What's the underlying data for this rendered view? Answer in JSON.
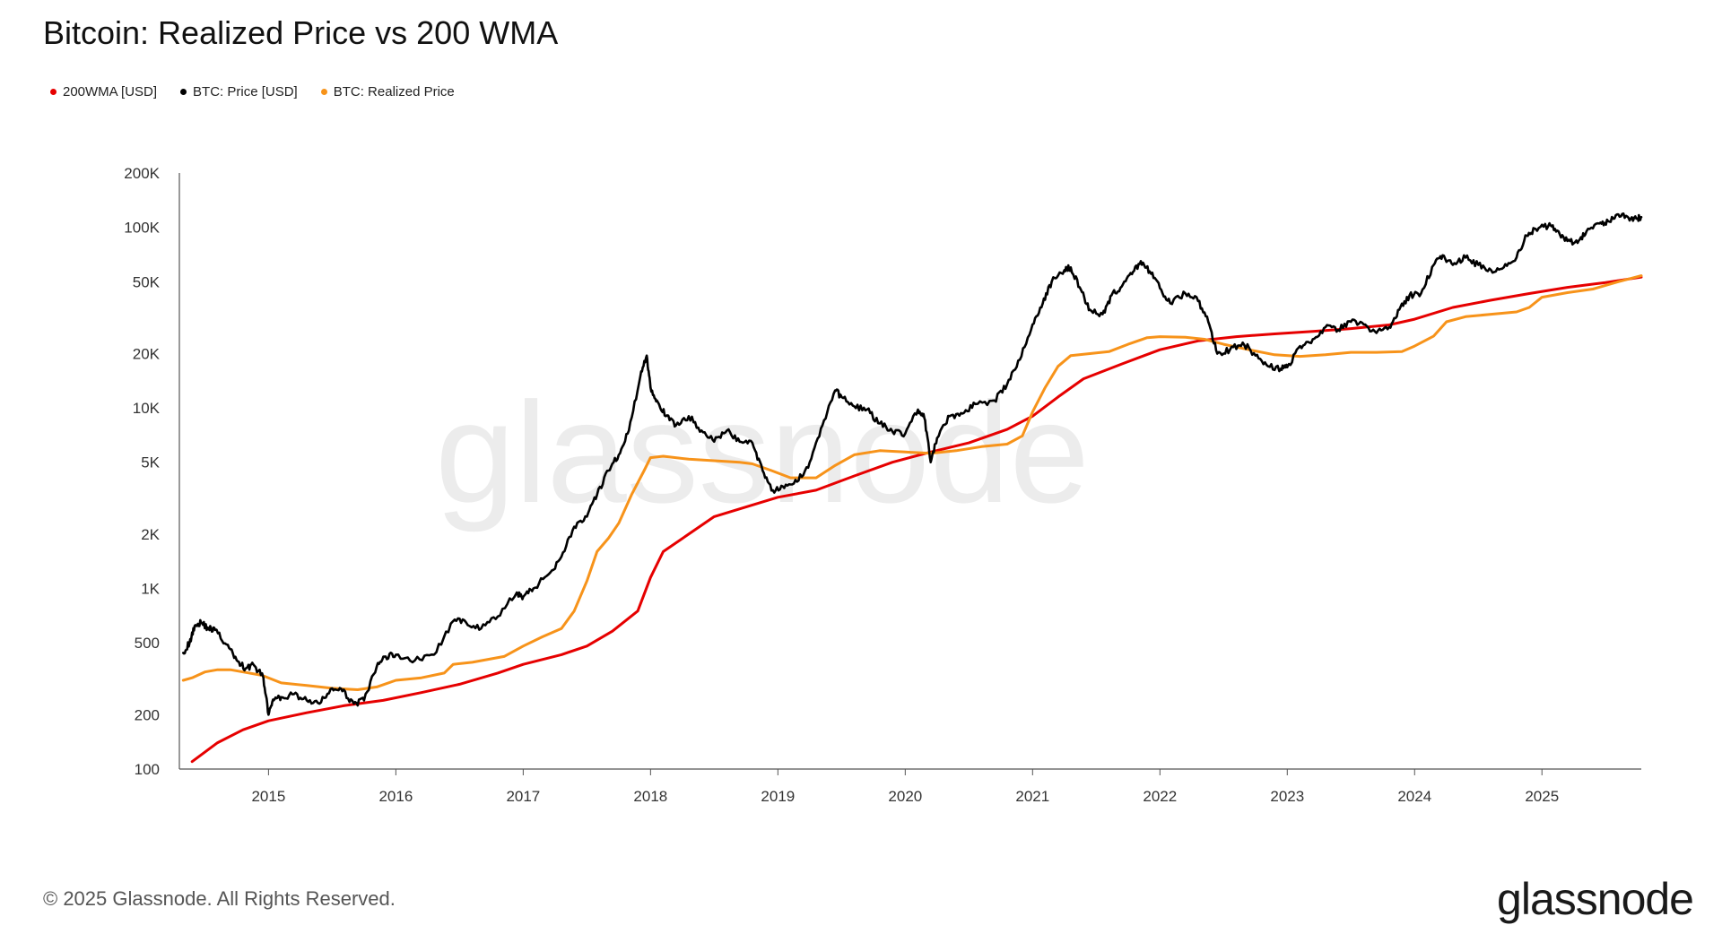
{
  "title": "Bitcoin: Realized Price vs 200 WMA",
  "legend": [
    {
      "label": "200WMA [USD]",
      "color": "#e60000"
    },
    {
      "label": "BTC: Price [USD]",
      "color": "#000000"
    },
    {
      "label": "BTC: Realized Price",
      "color": "#f7931a"
    }
  ],
  "watermark": "glassnode",
  "footer": "© 2025 Glassnode. All Rights Reserved.",
  "logo": "glassnode",
  "chart_data": {
    "type": "line",
    "scale_y": "log",
    "ylim": [
      100,
      200000
    ],
    "xlim": [
      2014.3,
      2025.78
    ],
    "y_ticks": [
      {
        "value": 100,
        "label": "100"
      },
      {
        "value": 200,
        "label": "200"
      },
      {
        "value": 500,
        "label": "500"
      },
      {
        "value": 1000,
        "label": "1K"
      },
      {
        "value": 2000,
        "label": "2K"
      },
      {
        "value": 5000,
        "label": "5K"
      },
      {
        "value": 10000,
        "label": "10K"
      },
      {
        "value": 20000,
        "label": "20K"
      },
      {
        "value": 50000,
        "label": "50K"
      },
      {
        "value": 100000,
        "label": "100K"
      },
      {
        "value": 200000,
        "label": "200K"
      }
    ],
    "x_ticks": [
      "2015",
      "2016",
      "2017",
      "2018",
      "2019",
      "2020",
      "2021",
      "2022",
      "2023",
      "2024",
      "2025"
    ],
    "grid": false,
    "legend_position": "top-left",
    "series": [
      {
        "name": "200WMA [USD]",
        "color": "#e60000",
        "points": [
          [
            2014.4,
            110
          ],
          [
            2014.6,
            140
          ],
          [
            2014.8,
            165
          ],
          [
            2015.0,
            185
          ],
          [
            2015.3,
            205
          ],
          [
            2015.6,
            225
          ],
          [
            2015.9,
            240
          ],
          [
            2016.2,
            265
          ],
          [
            2016.5,
            295
          ],
          [
            2016.8,
            340
          ],
          [
            2017.0,
            380
          ],
          [
            2017.3,
            430
          ],
          [
            2017.5,
            480
          ],
          [
            2017.7,
            580
          ],
          [
            2017.9,
            750
          ],
          [
            2018.0,
            1150
          ],
          [
            2018.1,
            1600
          ],
          [
            2018.3,
            2000
          ],
          [
            2018.5,
            2500
          ],
          [
            2018.8,
            2900
          ],
          [
            2019.0,
            3200
          ],
          [
            2019.3,
            3500
          ],
          [
            2019.6,
            4200
          ],
          [
            2019.9,
            5000
          ],
          [
            2020.2,
            5700
          ],
          [
            2020.5,
            6400
          ],
          [
            2020.8,
            7600
          ],
          [
            2021.0,
            9000
          ],
          [
            2021.2,
            11500
          ],
          [
            2021.4,
            14500
          ],
          [
            2021.7,
            17500
          ],
          [
            2022.0,
            21000
          ],
          [
            2022.3,
            23500
          ],
          [
            2022.6,
            24800
          ],
          [
            2022.9,
            25700
          ],
          [
            2023.2,
            26500
          ],
          [
            2023.5,
            27500
          ],
          [
            2023.8,
            28800
          ],
          [
            2024.0,
            31000
          ],
          [
            2024.3,
            36000
          ],
          [
            2024.6,
            39500
          ],
          [
            2024.9,
            43000
          ],
          [
            2025.2,
            46500
          ],
          [
            2025.5,
            49500
          ],
          [
            2025.78,
            53000
          ]
        ]
      },
      {
        "name": "BTC: Price [USD]",
        "color": "#000000",
        "points": [
          [
            2014.33,
            440
          ],
          [
            2014.38,
            500
          ],
          [
            2014.42,
            620
          ],
          [
            2014.47,
            650
          ],
          [
            2014.53,
            600
          ],
          [
            2014.58,
            590
          ],
          [
            2014.67,
            490
          ],
          [
            2014.75,
            400
          ],
          [
            2014.82,
            360
          ],
          [
            2014.88,
            380
          ],
          [
            2014.96,
            320
          ],
          [
            2015.0,
            200
          ],
          [
            2015.04,
            240
          ],
          [
            2015.1,
            250
          ],
          [
            2015.2,
            260
          ],
          [
            2015.3,
            240
          ],
          [
            2015.4,
            230
          ],
          [
            2015.5,
            280
          ],
          [
            2015.58,
            270
          ],
          [
            2015.67,
            230
          ],
          [
            2015.75,
            240
          ],
          [
            2015.85,
            370
          ],
          [
            2015.92,
            420
          ],
          [
            2016.0,
            430
          ],
          [
            2016.15,
            400
          ],
          [
            2016.3,
            430
          ],
          [
            2016.45,
            660
          ],
          [
            2016.55,
            650
          ],
          [
            2016.67,
            600
          ],
          [
            2016.8,
            700
          ],
          [
            2016.95,
            950
          ],
          [
            2017.0,
            900
          ],
          [
            2017.08,
            1000
          ],
          [
            2017.2,
            1200
          ],
          [
            2017.3,
            1500
          ],
          [
            2017.4,
            2200
          ],
          [
            2017.5,
            2500
          ],
          [
            2017.58,
            3300
          ],
          [
            2017.67,
            4500
          ],
          [
            2017.75,
            5500
          ],
          [
            2017.83,
            7500
          ],
          [
            2017.92,
            15000
          ],
          [
            2017.97,
            19500
          ],
          [
            2018.0,
            13000
          ],
          [
            2018.05,
            11000
          ],
          [
            2018.12,
            9000
          ],
          [
            2018.2,
            8000
          ],
          [
            2018.3,
            9000
          ],
          [
            2018.4,
            7500
          ],
          [
            2018.5,
            6500
          ],
          [
            2018.6,
            7500
          ],
          [
            2018.7,
            6500
          ],
          [
            2018.8,
            6400
          ],
          [
            2018.88,
            4500
          ],
          [
            2018.96,
            3500
          ],
          [
            2019.05,
            3600
          ],
          [
            2019.15,
            3900
          ],
          [
            2019.25,
            5000
          ],
          [
            2019.35,
            8000
          ],
          [
            2019.45,
            12500
          ],
          [
            2019.5,
            11500
          ],
          [
            2019.6,
            10200
          ],
          [
            2019.7,
            9800
          ],
          [
            2019.8,
            8200
          ],
          [
            2019.9,
            7400
          ],
          [
            2020.0,
            7200
          ],
          [
            2020.1,
            9800
          ],
          [
            2020.15,
            8800
          ],
          [
            2020.2,
            5000
          ],
          [
            2020.25,
            6800
          ],
          [
            2020.35,
            9000
          ],
          [
            2020.45,
            9300
          ],
          [
            2020.55,
            10500
          ],
          [
            2020.7,
            11000
          ],
          [
            2020.8,
            13500
          ],
          [
            2020.9,
            18500
          ],
          [
            2021.0,
            29000
          ],
          [
            2021.08,
            38000
          ],
          [
            2021.15,
            50000
          ],
          [
            2021.25,
            58000
          ],
          [
            2021.3,
            60000
          ],
          [
            2021.38,
            45000
          ],
          [
            2021.45,
            35000
          ],
          [
            2021.55,
            33000
          ],
          [
            2021.62,
            42000
          ],
          [
            2021.7,
            47000
          ],
          [
            2021.78,
            55000
          ],
          [
            2021.85,
            65000
          ],
          [
            2021.92,
            57000
          ],
          [
            2022.0,
            46000
          ],
          [
            2022.08,
            38000
          ],
          [
            2022.2,
            43000
          ],
          [
            2022.3,
            39000
          ],
          [
            2022.38,
            30000
          ],
          [
            2022.45,
            20000
          ],
          [
            2022.55,
            21000
          ],
          [
            2022.65,
            23000
          ],
          [
            2022.75,
            19500
          ],
          [
            2022.85,
            17000
          ],
          [
            2022.95,
            16500
          ],
          [
            2023.0,
            16800
          ],
          [
            2023.1,
            22000
          ],
          [
            2023.2,
            24000
          ],
          [
            2023.3,
            28000
          ],
          [
            2023.4,
            27000
          ],
          [
            2023.5,
            30000
          ],
          [
            2023.6,
            29000
          ],
          [
            2023.7,
            26000
          ],
          [
            2023.8,
            28000
          ],
          [
            2023.88,
            35000
          ],
          [
            2023.96,
            42000
          ],
          [
            2024.05,
            43000
          ],
          [
            2024.15,
            62000
          ],
          [
            2024.22,
            70000
          ],
          [
            2024.3,
            62000
          ],
          [
            2024.4,
            68000
          ],
          [
            2024.5,
            62000
          ],
          [
            2024.6,
            58000
          ],
          [
            2024.7,
            60000
          ],
          [
            2024.8,
            68000
          ],
          [
            2024.88,
            90000
          ],
          [
            2024.95,
            98000
          ],
          [
            2025.05,
            102000
          ],
          [
            2025.12,
            96000
          ],
          [
            2025.2,
            84000
          ],
          [
            2025.28,
            82000
          ],
          [
            2025.35,
            95000
          ],
          [
            2025.45,
            105000
          ],
          [
            2025.52,
            108000
          ],
          [
            2025.6,
            118000
          ],
          [
            2025.68,
            113000
          ],
          [
            2025.75,
            112000
          ],
          [
            2025.78,
            114000
          ]
        ]
      },
      {
        "name": "BTC: Realized Price",
        "color": "#f7931a",
        "points": [
          [
            2014.33,
            310
          ],
          [
            2014.4,
            320
          ],
          [
            2014.5,
            345
          ],
          [
            2014.6,
            355
          ],
          [
            2014.7,
            355
          ],
          [
            2014.8,
            345
          ],
          [
            2014.95,
            330
          ],
          [
            2015.1,
            300
          ],
          [
            2015.3,
            290
          ],
          [
            2015.5,
            280
          ],
          [
            2015.7,
            275
          ],
          [
            2015.85,
            285
          ],
          [
            2016.0,
            310
          ],
          [
            2016.2,
            320
          ],
          [
            2016.38,
            340
          ],
          [
            2016.45,
            380
          ],
          [
            2016.6,
            390
          ],
          [
            2016.85,
            420
          ],
          [
            2017.0,
            480
          ],
          [
            2017.15,
            540
          ],
          [
            2017.3,
            600
          ],
          [
            2017.4,
            750
          ],
          [
            2017.5,
            1100
          ],
          [
            2017.58,
            1600
          ],
          [
            2017.67,
            1900
          ],
          [
            2017.75,
            2300
          ],
          [
            2017.85,
            3300
          ],
          [
            2017.95,
            4500
          ],
          [
            2018.0,
            5300
          ],
          [
            2018.1,
            5400
          ],
          [
            2018.3,
            5200
          ],
          [
            2018.5,
            5100
          ],
          [
            2018.7,
            5000
          ],
          [
            2018.8,
            4900
          ],
          [
            2018.95,
            4500
          ],
          [
            2019.1,
            4100
          ],
          [
            2019.3,
            4100
          ],
          [
            2019.45,
            4800
          ],
          [
            2019.6,
            5500
          ],
          [
            2019.8,
            5800
          ],
          [
            2020.0,
            5700
          ],
          [
            2020.2,
            5600
          ],
          [
            2020.4,
            5800
          ],
          [
            2020.6,
            6100
          ],
          [
            2020.8,
            6300
          ],
          [
            2020.92,
            7000
          ],
          [
            2021.0,
            9500
          ],
          [
            2021.1,
            13000
          ],
          [
            2021.2,
            17000
          ],
          [
            2021.3,
            19500
          ],
          [
            2021.45,
            20000
          ],
          [
            2021.6,
            20500
          ],
          [
            2021.75,
            22500
          ],
          [
            2021.9,
            24500
          ],
          [
            2022.0,
            24800
          ],
          [
            2022.2,
            24600
          ],
          [
            2022.35,
            24000
          ],
          [
            2022.5,
            22500
          ],
          [
            2022.7,
            21000
          ],
          [
            2022.9,
            19700
          ],
          [
            2023.1,
            19300
          ],
          [
            2023.3,
            19700
          ],
          [
            2023.5,
            20300
          ],
          [
            2023.7,
            20300
          ],
          [
            2023.9,
            20500
          ],
          [
            2024.0,
            22000
          ],
          [
            2024.15,
            25000
          ],
          [
            2024.25,
            30000
          ],
          [
            2024.4,
            32000
          ],
          [
            2024.6,
            33000
          ],
          [
            2024.8,
            34000
          ],
          [
            2024.9,
            36000
          ],
          [
            2025.0,
            41000
          ],
          [
            2025.2,
            43500
          ],
          [
            2025.4,
            45500
          ],
          [
            2025.6,
            50000
          ],
          [
            2025.78,
            54000
          ]
        ]
      }
    ]
  }
}
